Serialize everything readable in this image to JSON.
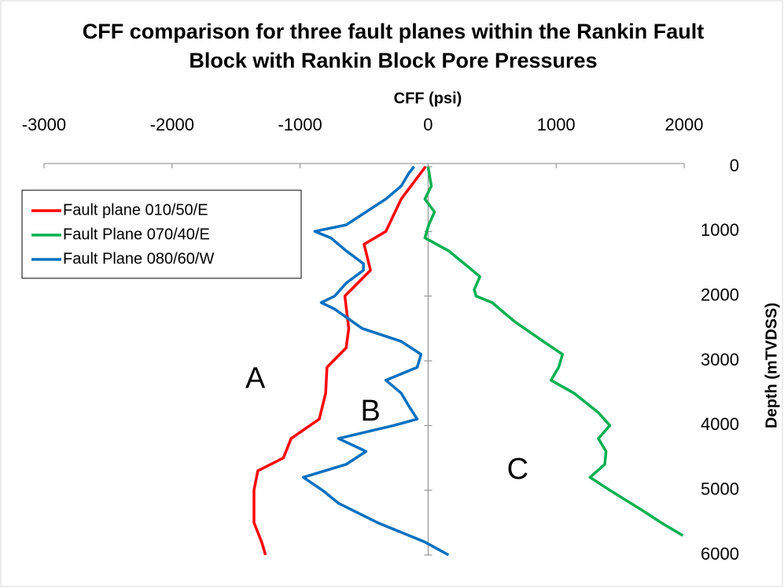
{
  "chart_data": {
    "type": "line",
    "title": "CFF comparison for three fault planes within the Rankin Fault Block with Rankin Block Pore Pressures",
    "x_label": "CFF (psi)",
    "y_label": "Depth (mTVDSS)",
    "xlim": [
      -3000,
      2000
    ],
    "xticks": [
      -3000,
      -2000,
      -1000,
      0,
      1000,
      2000
    ],
    "ylim": [
      0,
      6000
    ],
    "yticks": [
      0,
      1000,
      2000,
      3000,
      4000,
      5000,
      6000
    ],
    "y_inverted": true,
    "legend": "top-left",
    "series": [
      {
        "name": "Fault plane 010/50/E",
        "color": "#ff0000",
        "x": [
          -20,
          -210,
          -330,
          -500,
          -450,
          -650,
          -620,
          -640,
          -790,
          -800,
          -850,
          -1070,
          -1130,
          -1330,
          -1360,
          -1360,
          -1300,
          -1270
        ],
        "y": [
          0,
          500,
          1000,
          1200,
          1600,
          2000,
          2500,
          2800,
          3100,
          3500,
          3900,
          4200,
          4500,
          4700,
          5000,
          5500,
          5800,
          6000
        ]
      },
      {
        "name": "Fault Plane 070/40/E",
        "color": "#00b050",
        "x": [
          0,
          25,
          -25,
          50,
          5,
          -25,
          160,
          345,
          405,
          360,
          375,
          500,
          680,
          900,
          1050,
          1020,
          960,
          1140,
          1330,
          1420,
          1330,
          1390,
          1380,
          1265,
          1420,
          1665,
          1820,
          1990
        ],
        "y": [
          0,
          300,
          500,
          700,
          900,
          1100,
          1300,
          1600,
          1700,
          1900,
          2000,
          2100,
          2400,
          2700,
          2900,
          3100,
          3300,
          3500,
          3800,
          4000,
          4200,
          4400,
          4600,
          4800,
          5000,
          5300,
          5500,
          5700
        ]
      },
      {
        "name": "Fault Plane 080/60/W",
        "color": "#0070c0",
        "x": [
          -110,
          -150,
          -210,
          -330,
          -485,
          -640,
          -885,
          -760,
          -640,
          -505,
          -505,
          -640,
          -730,
          -835,
          -730,
          -515,
          -210,
          -55,
          -85,
          -330,
          -210,
          -150,
          -85,
          -270,
          -700,
          -485,
          -640,
          -975,
          -825,
          -700,
          -395,
          -25,
          160
        ],
        "y": [
          0,
          100,
          300,
          500,
          700,
          900,
          1000,
          1100,
          1300,
          1500,
          1600,
          1800,
          2000,
          2100,
          2200,
          2500,
          2700,
          2900,
          3100,
          3300,
          3500,
          3700,
          3900,
          4000,
          4200,
          4400,
          4600,
          4800,
          5000,
          5200,
          5500,
          5800,
          6000
        ]
      }
    ],
    "annotations": [
      {
        "text": "A",
        "x": -1350,
        "y": 3300
      },
      {
        "text": "B",
        "x": -450,
        "y": 3800
      },
      {
        "text": "C",
        "x": 700,
        "y": 4700
      }
    ]
  }
}
